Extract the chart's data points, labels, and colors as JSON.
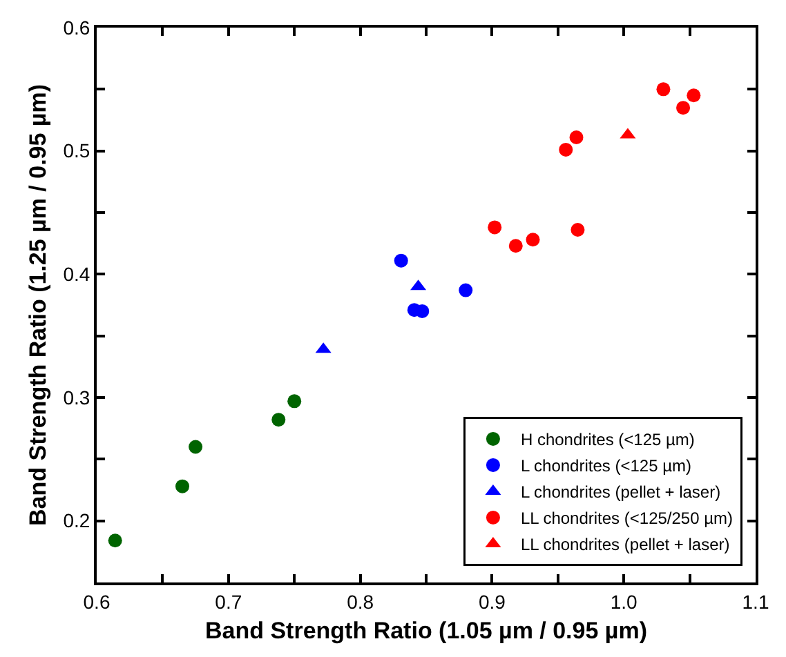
{
  "chart_data": {
    "type": "scatter",
    "xlabel": "Band Strength Ratio (1.05 µm / 0.95 µm)",
    "ylabel": "Band Strength Ratio (1.25 µm / 0.95 µm)",
    "xlim": [
      0.6,
      1.1
    ],
    "ylim": [
      0.15,
      0.6
    ],
    "xticks": [
      {
        "value": 0.6,
        "label": "0.6"
      },
      {
        "value": 0.65,
        "label": null
      },
      {
        "value": 0.7,
        "label": "0.7"
      },
      {
        "value": 0.75,
        "label": null
      },
      {
        "value": 0.8,
        "label": "0.8"
      },
      {
        "value": 0.85,
        "label": null
      },
      {
        "value": 0.9,
        "label": "0.9"
      },
      {
        "value": 0.95,
        "label": null
      },
      {
        "value": 1.0,
        "label": "1.0"
      },
      {
        "value": 1.05,
        "label": null
      },
      {
        "value": 1.1,
        "label": "1.1"
      }
    ],
    "yticks": [
      {
        "value": 0.15,
        "label": null
      },
      {
        "value": 0.2,
        "label": "0.2"
      },
      {
        "value": 0.25,
        "label": null
      },
      {
        "value": 0.3,
        "label": "0.3"
      },
      {
        "value": 0.35,
        "label": null
      },
      {
        "value": 0.4,
        "label": "0.4"
      },
      {
        "value": 0.45,
        "label": null
      },
      {
        "value": 0.5,
        "label": "0.5"
      },
      {
        "value": 0.55,
        "label": null
      },
      {
        "value": 0.6,
        "label": "0.6"
      }
    ],
    "legend": "bottom right",
    "series": [
      {
        "name": "H chondrites (<125 µm)",
        "color": "#006400",
        "marker": "circle",
        "x": [
          0.614,
          0.665,
          0.675,
          0.738,
          0.75
        ],
        "values": [
          0.184,
          0.228,
          0.26,
          0.282,
          0.297
        ]
      },
      {
        "name": "L chondrites (<125 µm)",
        "color": "#0000ff",
        "marker": "circle",
        "x": [
          0.831,
          0.88,
          0.841,
          0.847
        ],
        "values": [
          0.411,
          0.387,
          0.371,
          0.37
        ]
      },
      {
        "name": "L chondrites (pellet + laser)",
        "color": "#0000ff",
        "marker": "triangle",
        "x": [
          0.772,
          0.844
        ],
        "values": [
          0.339,
          0.39
        ]
      },
      {
        "name": "LL chondrites (<125/250 µm)",
        "color": "#ff0000",
        "marker": "circle",
        "x": [
          0.902,
          0.918,
          0.931,
          0.965,
          0.956,
          0.964,
          1.03,
          1.045,
          1.053
        ],
        "values": [
          0.438,
          0.423,
          0.428,
          0.436,
          0.501,
          0.511,
          0.55,
          0.535,
          0.545
        ]
      },
      {
        "name": "LL chondrites (pellet + laser)",
        "color": "#ff0000",
        "marker": "triangle",
        "x": [
          1.003
        ],
        "values": [
          0.513
        ]
      }
    ]
  }
}
